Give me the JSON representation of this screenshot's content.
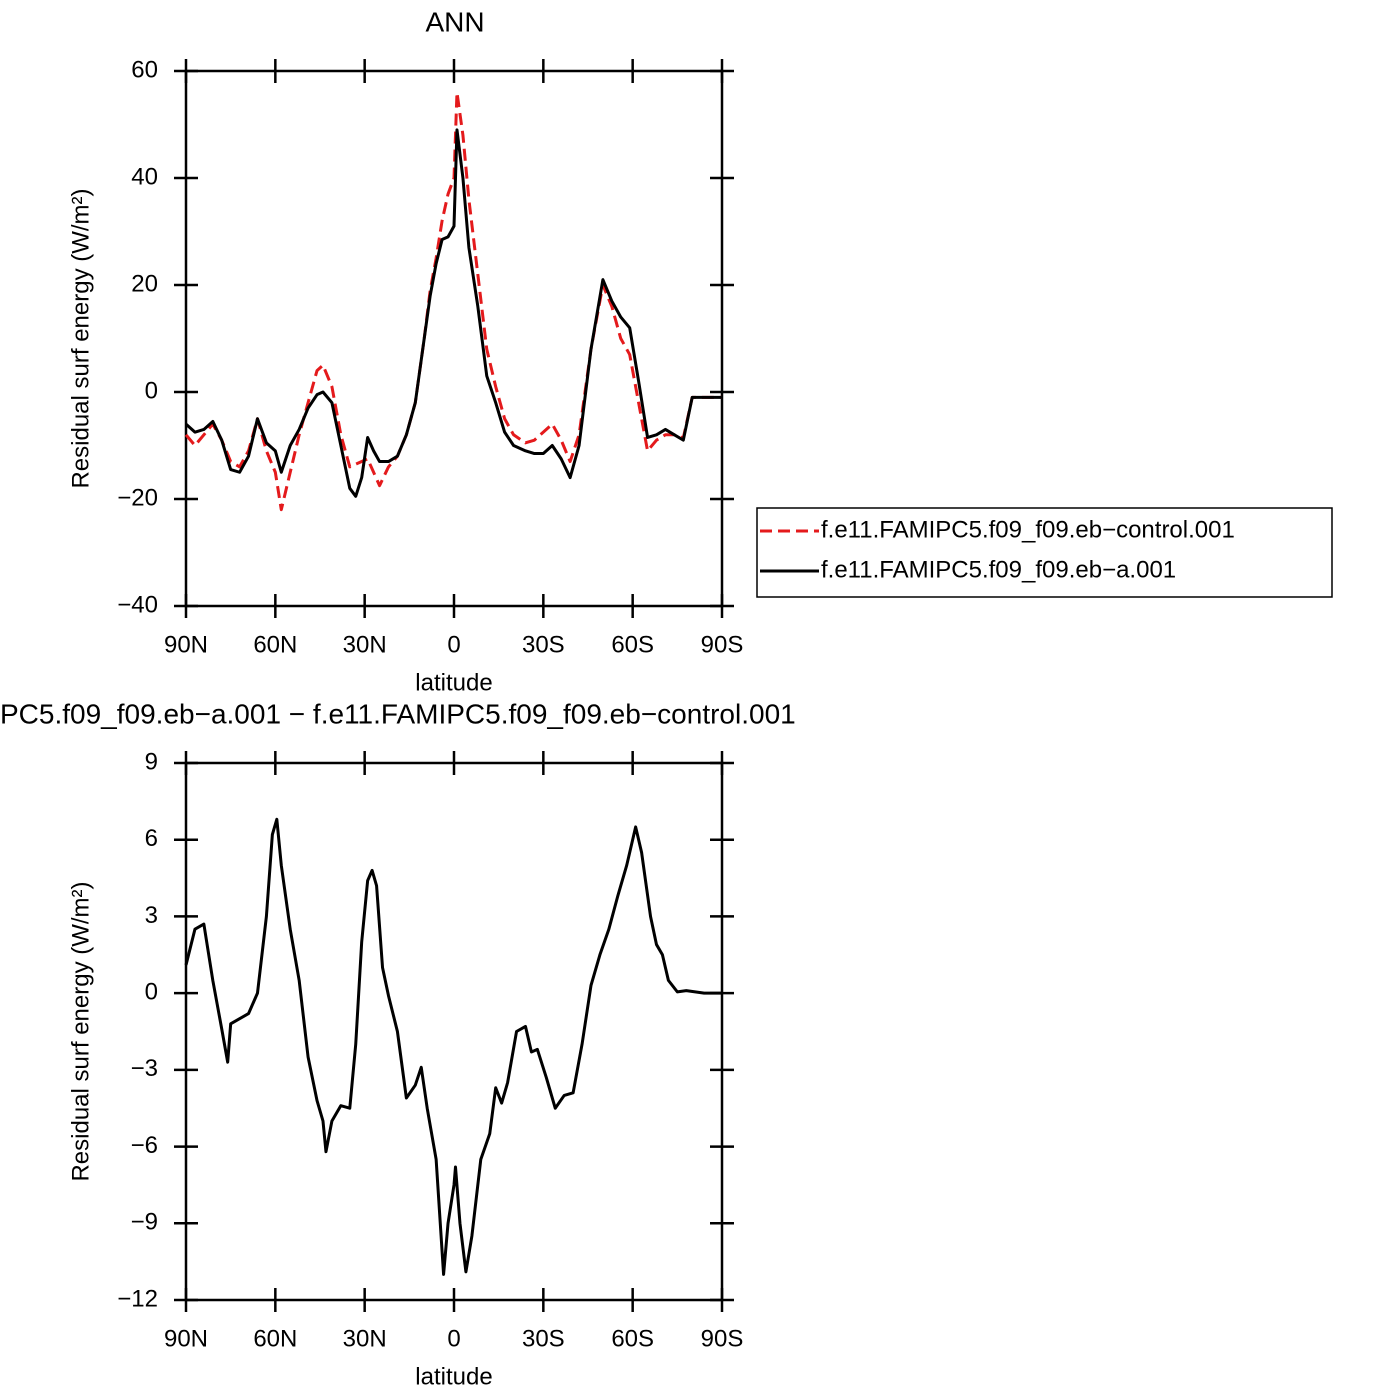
{
  "chart_data": [
    {
      "type": "line",
      "title": "ANN",
      "xlabel": "latitude",
      "ylabel": "Residual surf energy (W/m²)",
      "x": [
        90,
        87,
        84,
        81,
        78,
        75,
        72,
        69,
        66,
        63,
        60,
        58,
        55,
        52,
        49,
        46,
        44,
        41,
        38,
        35,
        33,
        31,
        29,
        27,
        25,
        22,
        19,
        16,
        13,
        10,
        8,
        6,
        4,
        2,
        0,
        -1,
        -3,
        -5,
        -8,
        -11,
        -14,
        -17,
        -20,
        -24,
        -27,
        -30,
        -33,
        -36,
        -39,
        -42,
        -46,
        -50,
        -53,
        -56,
        -59,
        -62,
        -65,
        -68,
        -71,
        -74,
        -77,
        -80,
        -85,
        -90
      ],
      "series": [
        {
          "name": "f.e11.FAMIPC5.f09_f09.eb−control.001",
          "color": "#e41a1c",
          "dash": true,
          "values": [
            -8,
            -10,
            -8,
            -6,
            -9,
            -13,
            -14,
            -11,
            -5,
            -11,
            -15,
            -22,
            -15,
            -8,
            -2,
            4,
            5,
            1,
            -8,
            -14,
            -13.5,
            -13,
            -12.5,
            -15,
            -17.5,
            -14,
            -12,
            -8,
            -2,
            10,
            19,
            25,
            32,
            37,
            40,
            56,
            48,
            36,
            22,
            8,
            1,
            -5,
            -8,
            -9.5,
            -9,
            -7.5,
            -6,
            -9,
            -13,
            -8,
            8,
            20,
            16,
            10,
            7,
            -2,
            -11,
            -9,
            -8,
            -8,
            -8.6,
            -1,
            -1,
            -1
          ]
        },
        {
          "name": "f.e11.FAMIPC5.f09_f09.eb−a.001",
          "color": "#000000",
          "dash": false,
          "values": [
            -6,
            -7.5,
            -7,
            -5.5,
            -9,
            -14.5,
            -15,
            -12,
            -5,
            -9.5,
            -11,
            -15,
            -10,
            -7,
            -3,
            -0.5,
            0,
            -2,
            -10,
            -18,
            -19.5,
            -16,
            -8.5,
            -11,
            -13,
            -13,
            -12,
            -8,
            -2,
            10,
            18,
            24,
            28.5,
            29,
            31,
            49,
            40,
            27,
            16,
            3,
            -2,
            -7.5,
            -10,
            -11,
            -11.5,
            -11.5,
            -10,
            -12.5,
            -16,
            -10,
            8,
            21,
            17,
            14,
            12,
            2,
            -8.5,
            -8,
            -7,
            -8,
            -9,
            -1,
            -1,
            -1
          ]
        }
      ],
      "xlim": [
        90,
        -90
      ],
      "xticks": [
        {
          "value": 90,
          "label": "90N"
        },
        {
          "value": 60,
          "label": "60N"
        },
        {
          "value": 30,
          "label": "30N"
        },
        0,
        {
          "value": -30,
          "label": "30S"
        },
        {
          "value": -60,
          "label": "60S"
        },
        {
          "value": -90,
          "label": "90S"
        }
      ],
      "ylim": [
        -40,
        60
      ],
      "yticks": [
        {
          "value": -40,
          "label": "−40"
        },
        {
          "value": -20,
          "label": "−20"
        },
        0,
        20,
        40,
        60
      ],
      "legend": "right"
    },
    {
      "type": "line",
      "title": "PC5.f09_f09.eb−a.001 − f.e11.FAMIPC5.f09_f09.eb−control.001",
      "xlabel": "latitude",
      "ylabel": "Residual surf energy (W/m²)",
      "x": [
        90,
        87,
        84,
        81,
        78,
        76,
        75,
        72,
        69,
        66,
        63,
        61,
        59.5,
        58,
        55,
        52,
        49,
        46,
        44,
        43,
        41,
        38,
        35,
        33,
        31,
        29,
        27.5,
        26,
        24,
        22,
        19,
        16,
        13,
        11,
        9,
        6,
        3.5,
        2,
        0,
        -0.5,
        -2,
        -4,
        -6,
        -9,
        -12,
        -14,
        -16,
        -18,
        -21,
        -24,
        -26,
        -28,
        -31,
        -34,
        -37,
        -40,
        -43,
        -46,
        -49,
        -52,
        -55,
        -58,
        -61,
        -63,
        -66,
        -68,
        -70,
        -72,
        -75,
        -78,
        -81,
        -84,
        -87,
        -90
      ],
      "series": [
        {
          "color": "#000000",
          "dash": false,
          "values": [
            1.1,
            2.5,
            2.7,
            0.5,
            -1.4,
            -2.7,
            -1.2,
            -1,
            -0.8,
            0,
            3,
            6.2,
            6.8,
            5,
            2.5,
            0.5,
            -2.5,
            -4.2,
            -5,
            -6.2,
            -5,
            -4.4,
            -4.5,
            -2,
            2,
            4.4,
            4.8,
            4.2,
            1,
            -0.1,
            -1.5,
            -4.1,
            -3.6,
            -2.9,
            -4.5,
            -6.5,
            -11,
            -9,
            -7.5,
            -6.8,
            -9,
            -10.9,
            -9.5,
            -6.5,
            -5.5,
            -3.7,
            -4.3,
            -3.5,
            -1.5,
            -1.3,
            -2.3,
            -2.2,
            -3.3,
            -4.5,
            -4,
            -3.9,
            -2,
            0.3,
            1.5,
            2.5,
            3.8,
            5,
            6.5,
            5.5,
            3,
            1.9,
            1.5,
            0.5,
            0.05,
            0.1,
            0.05,
            0,
            0,
            0
          ]
        }
      ],
      "xlim": [
        90,
        -90
      ],
      "xticks": [
        {
          "value": 90,
          "label": "90N"
        },
        {
          "value": 60,
          "label": "60N"
        },
        {
          "value": 30,
          "label": "30N"
        },
        0,
        {
          "value": -30,
          "label": "30S"
        },
        {
          "value": -60,
          "label": "60S"
        },
        {
          "value": -90,
          "label": "90S"
        }
      ],
      "ylim": [
        -12,
        9
      ],
      "yticks": [
        {
          "value": -12,
          "label": "−12"
        },
        {
          "value": -9,
          "label": "−9"
        },
        {
          "value": -6,
          "label": "−6"
        },
        {
          "value": -3,
          "label": "−3"
        },
        0,
        3,
        6,
        9
      ]
    }
  ]
}
